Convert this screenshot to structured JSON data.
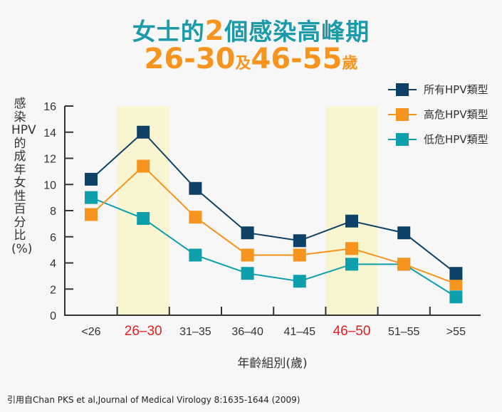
{
  "title": {
    "line1_pre": "女士的",
    "line1_num": "2",
    "line1_post": "個感染高峰期",
    "line2_a": "26-30",
    "line2_and": "及",
    "line2_b": "46-55",
    "line2_unit": "歲"
  },
  "source": "引用自Chan PKS et al,Journal of Medical Virology 8:1635-1644 (2009)",
  "chart_data": {
    "type": "line",
    "ylabel": "感染HPV的成年女性百分比(%)",
    "xlabel": "年齡組別(歲)",
    "categories": [
      "<26",
      "26-30",
      "31-35",
      "36-40",
      "41-45",
      "46-50",
      "51-55",
      ">55"
    ],
    "highlighted_categories": [
      "26-30",
      "46-50"
    ],
    "highlight_color": "#f8f5d0",
    "highlight_label_color": "#e02020",
    "ylim": [
      0,
      16
    ],
    "yticks": [
      0,
      2,
      4,
      6,
      8,
      10,
      12,
      14,
      16
    ],
    "grid": false,
    "legend_position": "top-right",
    "series": [
      {
        "name": "所有HPV類型",
        "color": "#0d4266",
        "values": [
          10.4,
          14.0,
          9.7,
          6.3,
          5.7,
          7.2,
          6.3,
          3.2
        ]
      },
      {
        "name": "高危HPV類型",
        "color": "#f7941d",
        "values": [
          7.7,
          11.4,
          7.5,
          4.6,
          4.6,
          5.1,
          3.9,
          2.4
        ]
      },
      {
        "name": "低危HPV類型",
        "color": "#0e9fad",
        "values": [
          9.0,
          7.4,
          4.6,
          3.2,
          2.6,
          3.9,
          3.9,
          1.4
        ]
      }
    ]
  }
}
